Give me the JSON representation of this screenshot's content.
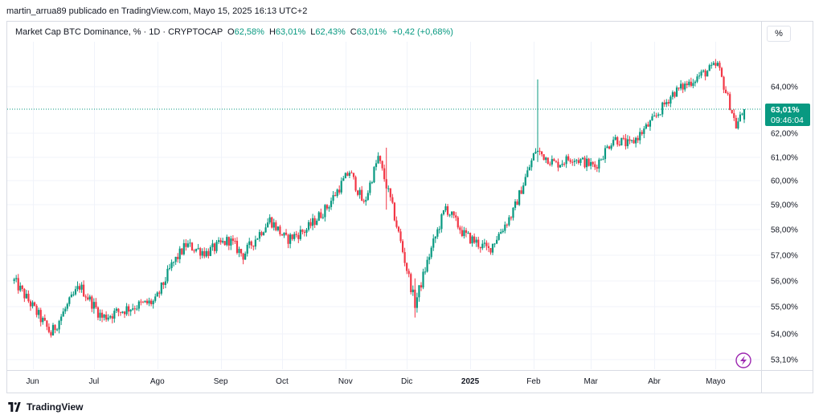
{
  "header": {
    "published_by": "martin_arrua89 publicado en TradingView.com, Mayo 15, 2025 16:13 UTC+2"
  },
  "legend": {
    "symbol": "Market Cap BTC Dominance, % · 1D · CRYPTOCAP",
    "open_label": "O",
    "open_value": "62,58%",
    "high_label": "H",
    "high_value": "63,01%",
    "low_label": "L",
    "low_value": "62,43%",
    "close_label": "C",
    "close_value": "63,01%",
    "change": "+0,42 (+0,68%)"
  },
  "unit_button": "%",
  "current_price": {
    "value": "63,01%",
    "countdown": "09:46:04"
  },
  "footer": {
    "brand": "TradingView"
  },
  "colors": {
    "up": "#089981",
    "down": "#f23645",
    "grid": "#f0f3fa",
    "accent": "#9c27b0"
  },
  "icons": {
    "brand_logo": "tradingview-logo-icon",
    "flash": "lightning-icon"
  },
  "chart_data": {
    "type": "candlestick",
    "title": "Market Cap BTC Dominance, % · 1D · CRYPTOCAP",
    "xlabel": "",
    "ylabel": "",
    "y_ticks": [
      "64,00%",
      "63,01%",
      "62,00%",
      "61,00%",
      "60,00%",
      "59,00%",
      "58,00%",
      "57,00%",
      "56,00%",
      "55,00%",
      "54,00%",
      "53,10%"
    ],
    "x_ticks": [
      "Jun",
      "Jul",
      "Ago",
      "Sep",
      "Oct",
      "Nov",
      "Dic",
      "2025",
      "Feb",
      "Mar",
      "Abr",
      "Mayo"
    ],
    "x_tick_bold": "2025",
    "ylim": [
      53.1,
      65.3
    ],
    "last_close": 63.01,
    "grid": true,
    "key_points": [
      {
        "date": "2024-05-23",
        "value": 56.0
      },
      {
        "date": "2024-06-10",
        "value": 54.0
      },
      {
        "date": "2024-06-24",
        "value": 55.8
      },
      {
        "date": "2024-07-05",
        "value": 54.6
      },
      {
        "date": "2024-07-20",
        "value": 55.0
      },
      {
        "date": "2024-07-31",
        "value": 55.2
      },
      {
        "date": "2024-08-08",
        "value": 56.6
      },
      {
        "date": "2024-08-15",
        "value": 57.4
      },
      {
        "date": "2024-08-25",
        "value": 57.1
      },
      {
        "date": "2024-09-05",
        "value": 57.6
      },
      {
        "date": "2024-09-12",
        "value": 57.0
      },
      {
        "date": "2024-09-25",
        "value": 58.4
      },
      {
        "date": "2024-10-03",
        "value": 57.6
      },
      {
        "date": "2024-10-13",
        "value": 58.0
      },
      {
        "date": "2024-10-23",
        "value": 58.9
      },
      {
        "date": "2024-11-03",
        "value": 60.4
      },
      {
        "date": "2024-11-10",
        "value": 59.0
      },
      {
        "date": "2024-11-17",
        "value": 61.0
      },
      {
        "date": "2024-11-23",
        "value": 59.2
      },
      {
        "date": "2024-12-05",
        "value": 55.1
      },
      {
        "date": "2024-12-12",
        "value": 57.0
      },
      {
        "date": "2024-12-20",
        "value": 58.9
      },
      {
        "date": "2024-12-29",
        "value": 57.8
      },
      {
        "date": "2025-01-10",
        "value": 57.2
      },
      {
        "date": "2025-01-22",
        "value": 58.7
      },
      {
        "date": "2025-02-02",
        "value": 61.3
      },
      {
        "date": "2025-02-12",
        "value": 60.7
      },
      {
        "date": "2025-02-20",
        "value": 61.0
      },
      {
        "date": "2025-03-03",
        "value": 60.6
      },
      {
        "date": "2025-03-12",
        "value": 61.8
      },
      {
        "date": "2025-03-20",
        "value": 61.5
      },
      {
        "date": "2025-04-01",
        "value": 62.6
      },
      {
        "date": "2025-04-10",
        "value": 63.7
      },
      {
        "date": "2025-04-22",
        "value": 64.4
      },
      {
        "date": "2025-05-02",
        "value": 64.9
      },
      {
        "date": "2025-05-08",
        "value": 63.2
      },
      {
        "date": "2025-05-11",
        "value": 62.3
      },
      {
        "date": "2025-05-15",
        "value": 63.01
      }
    ],
    "spikes": [
      {
        "date": "2025-02-03",
        "high": 64.3,
        "low": 60.8
      },
      {
        "date": "2024-11-21",
        "high": 61.4,
        "low": 58.8
      },
      {
        "date": "2024-12-05",
        "high": 56.1,
        "low": 54.6
      }
    ]
  }
}
